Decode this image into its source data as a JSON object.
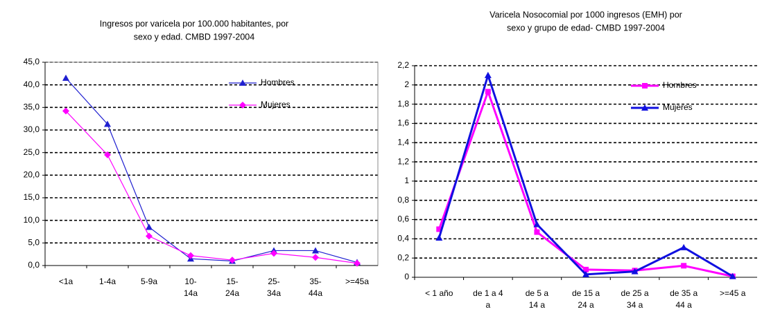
{
  "chart_data": [
    {
      "type": "line",
      "title": [
        "Ingresos por varicela por 100.000 habitantes, por",
        "sexo y edad. CMBD 1997-2004"
      ],
      "categories": [
        "<1a",
        "1-4a",
        "5-9a",
        "10-\n14a",
        "15-\n24a",
        "25-\n34a",
        "35-\n44a",
        ">=45a"
      ],
      "series": [
        {
          "name": "Hombres",
          "color": "#1f1fd0",
          "marker": "triangle",
          "values": [
            41.5,
            31.3,
            8.5,
            1.5,
            1.0,
            3.3,
            3.3,
            0.7
          ]
        },
        {
          "name": "Mujeres",
          "color": "#ff00ff",
          "marker": "diamond",
          "values": [
            34.2,
            24.5,
            6.5,
            2.2,
            1.2,
            2.7,
            1.8,
            0.5
          ]
        }
      ],
      "ylim": [
        0,
        45
      ],
      "yticks": [
        {
          "value": 0,
          "label": "0,0"
        },
        {
          "value": 5,
          "label": "5,0"
        },
        {
          "value": 10,
          "label": "10,0"
        },
        {
          "value": 15,
          "label": "15,0"
        },
        {
          "value": 20,
          "label": "20,0"
        },
        {
          "value": 25,
          "label": "25,0"
        },
        {
          "value": 30,
          "label": "30,0"
        },
        {
          "value": 35,
          "label": "35,0"
        },
        {
          "value": 40,
          "label": "40,0"
        },
        {
          "value": 45,
          "label": "45,0"
        }
      ],
      "grid": true,
      "legend": "upper right"
    },
    {
      "type": "line",
      "title": [
        "Varicela Nosocomial por 1000 ingresos (EMH) por",
        "sexo y grupo de edad- CMBD 1997-2004"
      ],
      "categories": [
        "< 1 año",
        "de 1 a 4\na",
        "de 5 a\n14 a",
        "de 15 a\n24 a",
        "de 25 a\n34 a",
        "de 35 a\n44 a",
        ">=45 a"
      ],
      "series": [
        {
          "name": "Hombres",
          "color": "#ff00ff",
          "marker": "square",
          "values": [
            0.5,
            1.93,
            0.47,
            0.08,
            0.07,
            0.12,
            0.01
          ]
        },
        {
          "name": "Mujeres",
          "color": "#1010e0",
          "marker": "triangle",
          "values": [
            0.41,
            2.1,
            0.55,
            0.03,
            0.06,
            0.31,
            0.01
          ]
        }
      ],
      "ylim": [
        0,
        2.2
      ],
      "yticks": [
        0,
        {
          "value": 0.2,
          "label": "0,2"
        },
        {
          "value": 0.4,
          "label": "0,4"
        },
        {
          "value": 0.6,
          "label": "0,6"
        },
        {
          "value": 0.8,
          "label": "0,8"
        },
        1,
        {
          "value": 1.2,
          "label": "1,2"
        },
        {
          "value": 1.4,
          "label": "1,4"
        },
        {
          "value": 1.6,
          "label": "1,6"
        },
        {
          "value": 1.8,
          "label": "1,8"
        },
        2,
        {
          "value": 2.2,
          "label": "2,2"
        }
      ],
      "grid": true,
      "legend": "upper right"
    }
  ]
}
